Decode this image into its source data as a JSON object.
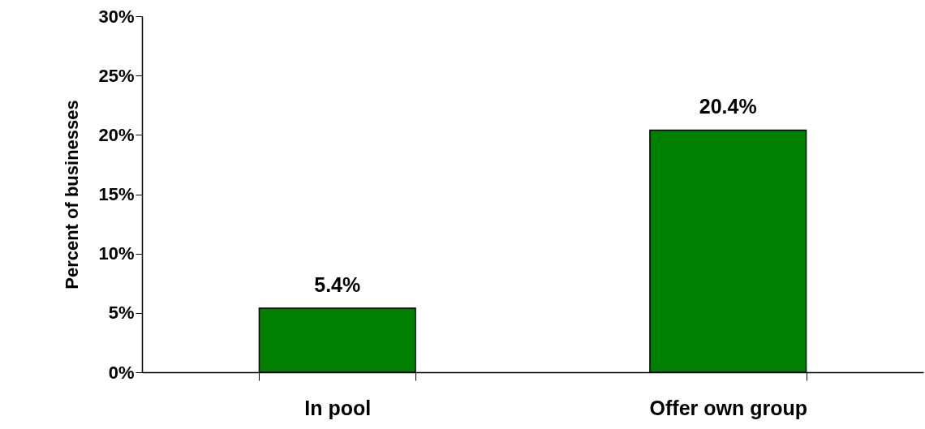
{
  "chart_data": {
    "type": "bar",
    "ylabel": "Percent of businesses",
    "categories": [
      "In pool",
      "Offer own group"
    ],
    "values": [
      5.4,
      20.4
    ],
    "color": "#008000",
    "value_labels": [
      "5.4%",
      "20.4%"
    ],
    "ylim": [
      0,
      30
    ],
    "yticks": [
      {
        "value": 0,
        "label": "0%"
      },
      {
        "value": 5,
        "label": "5%"
      },
      {
        "value": 10,
        "label": "10%"
      },
      {
        "value": 15,
        "label": "15%"
      },
      {
        "value": 20,
        "label": "20%"
      },
      {
        "value": 25,
        "label": "25%"
      },
      {
        "value": 30,
        "label": "30%"
      }
    ]
  }
}
